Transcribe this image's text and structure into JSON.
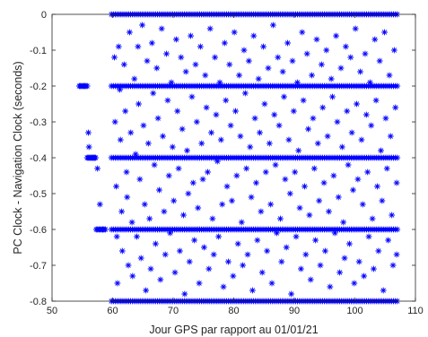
{
  "chart_data": {
    "type": "scatter",
    "title": "",
    "xlabel": "Jour GPS par rapport au 01/01/21",
    "ylabel": "PC Clock - Navigation Clock (seconds)",
    "xlim": [
      50,
      110
    ],
    "ylim": [
      -0.8,
      0
    ],
    "xticks": [
      50,
      60,
      70,
      80,
      90,
      100,
      110
    ],
    "yticks": [
      0,
      -0.1,
      -0.2,
      -0.3,
      -0.4,
      -0.5,
      -0.6,
      -0.7,
      -0.8
    ],
    "xtick_labels": [
      "50",
      "60",
      "70",
      "80",
      "90",
      "100",
      "110"
    ],
    "ytick_labels": [
      "0",
      "-0.1",
      "-0.2",
      "-0.3",
      "-0.4",
      "-0.5",
      "-0.6",
      "-0.7",
      "-0.8"
    ],
    "grid": false,
    "box": true,
    "marker": "asterisk",
    "marker_color": "#0000ff",
    "series": [
      {
        "dense_bands": [
          {
            "y": 0,
            "x_start": 59.8,
            "x_end": 107.0,
            "count": 150
          },
          {
            "y": -0.2,
            "x_start": 59.8,
            "x_end": 107.0,
            "count": 150
          },
          {
            "y": -0.4,
            "x_start": 59.8,
            "x_end": 107.0,
            "count": 150
          },
          {
            "y": -0.6,
            "x_start": 59.8,
            "x_end": 107.0,
            "count": 150
          },
          {
            "y": -0.8,
            "x_start": 59.8,
            "x_end": 107.0,
            "count": 150
          },
          {
            "y": -0.2,
            "x_start": 54.5,
            "x_end": 55.8,
            "count": 8
          },
          {
            "y": -0.4,
            "x_start": 55.8,
            "x_end": 57.2,
            "count": 10
          },
          {
            "y": -0.6,
            "x_start": 57.3,
            "x_end": 58.8,
            "count": 8
          }
        ],
        "points": [
          [
            56.0,
            -0.33
          ],
          [
            56.1,
            -0.37
          ],
          [
            57.5,
            -0.43
          ],
          [
            57.9,
            -0.53
          ],
          [
            58.4,
            -0.6
          ],
          [
            60.3,
            -0.12
          ],
          [
            60.4,
            -0.3
          ],
          [
            60.6,
            -0.48
          ],
          [
            60.7,
            -0.62
          ],
          [
            60.8,
            -0.75
          ],
          [
            61.0,
            -0.09
          ],
          [
            61.2,
            -0.21
          ],
          [
            61.3,
            -0.35
          ],
          [
            61.5,
            -0.55
          ],
          [
            61.6,
            -0.66
          ],
          [
            61.9,
            -0.14
          ],
          [
            62.1,
            -0.27
          ],
          [
            62.3,
            -0.44
          ],
          [
            62.4,
            -0.51
          ],
          [
            62.6,
            -0.7
          ],
          [
            62.8,
            -0.05
          ],
          [
            63.0,
            -0.33
          ],
          [
            63.2,
            -0.58
          ],
          [
            63.3,
            -0.73
          ],
          [
            63.6,
            -0.18
          ],
          [
            63.8,
            -0.39
          ],
          [
            64.0,
            -0.62
          ],
          [
            64.2,
            -0.09
          ],
          [
            64.3,
            -0.25
          ],
          [
            64.5,
            -0.46
          ],
          [
            64.7,
            -0.68
          ],
          [
            64.9,
            -0.03
          ],
          [
            65.1,
            -0.31
          ],
          [
            65.3,
            -0.53
          ],
          [
            65.5,
            -0.77
          ],
          [
            65.7,
            -0.13
          ],
          [
            65.9,
            -0.36
          ],
          [
            66.1,
            -0.57
          ],
          [
            66.3,
            -0.71
          ],
          [
            66.5,
            -0.08
          ],
          [
            66.7,
            -0.22
          ],
          [
            66.9,
            -0.42
          ],
          [
            67.1,
            -0.64
          ],
          [
            67.3,
            -0.15
          ],
          [
            67.5,
            -0.29
          ],
          [
            67.7,
            -0.49
          ],
          [
            67.9,
            -0.74
          ],
          [
            68.1,
            -0.04
          ],
          [
            68.3,
            -0.34
          ],
          [
            68.5,
            -0.55
          ],
          [
            68.7,
            -0.67
          ],
          [
            68.9,
            -0.11
          ],
          [
            69.1,
            -0.24
          ],
          [
            69.3,
            -0.45
          ],
          [
            69.5,
            -0.61
          ],
          [
            69.7,
            -0.19
          ],
          [
            69.9,
            -0.37
          ],
          [
            70.1,
            -0.52
          ],
          [
            70.3,
            -0.72
          ],
          [
            70.5,
            -0.07
          ],
          [
            70.7,
            -0.27
          ],
          [
            70.9,
            -0.43
          ],
          [
            71.1,
            -0.66
          ],
          [
            71.3,
            -0.12
          ],
          [
            71.5,
            -0.32
          ],
          [
            71.7,
            -0.56
          ],
          [
            71.9,
            -0.78
          ],
          [
            72.1,
            -0.16
          ],
          [
            72.3,
            -0.38
          ],
          [
            72.5,
            -0.5
          ],
          [
            72.7,
            -0.69
          ],
          [
            72.9,
            -0.06
          ],
          [
            73.1,
            -0.23
          ],
          [
            73.3,
            -0.47
          ],
          [
            73.5,
            -0.63
          ],
          [
            73.7,
            -0.14
          ],
          [
            73.9,
            -0.3
          ],
          [
            74.1,
            -0.54
          ],
          [
            74.3,
            -0.75
          ],
          [
            74.5,
            -0.09
          ],
          [
            74.7,
            -0.36
          ],
          [
            74.9,
            -0.46
          ],
          [
            75.1,
            -0.65
          ],
          [
            75.3,
            -0.17
          ],
          [
            75.5,
            -0.26
          ],
          [
            75.7,
            -0.44
          ],
          [
            75.9,
            -0.71
          ],
          [
            76.1,
            -0.04
          ],
          [
            76.3,
            -0.33
          ],
          [
            76.5,
            -0.57
          ],
          [
            76.7,
            -0.67
          ],
          [
            76.9,
            -0.12
          ],
          [
            77.1,
            -0.28
          ],
          [
            77.3,
            -0.41
          ],
          [
            77.5,
            -0.62
          ],
          [
            77.7,
            -0.19
          ],
          [
            77.9,
            -0.35
          ],
          [
            78.1,
            -0.53
          ],
          [
            78.3,
            -0.76
          ],
          [
            78.5,
            -0.08
          ],
          [
            78.7,
            -0.24
          ],
          [
            78.9,
            -0.48
          ],
          [
            79.1,
            -0.69
          ],
          [
            79.3,
            -0.14
          ],
          [
            79.5,
            -0.31
          ],
          [
            79.7,
            -0.52
          ],
          [
            79.9,
            -0.73
          ],
          [
            80.1,
            -0.05
          ],
          [
            80.3,
            -0.27
          ],
          [
            80.5,
            -0.45
          ],
          [
            80.7,
            -0.64
          ],
          [
            80.9,
            -0.17
          ],
          [
            81.1,
            -0.34
          ],
          [
            81.3,
            -0.58
          ],
          [
            81.5,
            -0.7
          ],
          [
            81.7,
            -0.1
          ],
          [
            81.9,
            -0.22
          ],
          [
            82.1,
            -0.43
          ],
          [
            82.3,
            -0.67
          ],
          [
            82.5,
            -0.13
          ],
          [
            82.7,
            -0.37
          ],
          [
            82.9,
            -0.51
          ],
          [
            83.1,
            -0.77
          ],
          [
            83.3,
            -0.06
          ],
          [
            83.5,
            -0.29
          ],
          [
            83.7,
            -0.47
          ],
          [
            83.9,
            -0.63
          ],
          [
            84.1,
            -0.18
          ],
          [
            84.3,
            -0.33
          ],
          [
            84.5,
            -0.55
          ],
          [
            84.7,
            -0.72
          ],
          [
            84.9,
            -0.09
          ],
          [
            85.1,
            -0.25
          ],
          [
            85.3,
            -0.44
          ],
          [
            85.5,
            -0.66
          ],
          [
            85.7,
            -0.15
          ],
          [
            85.9,
            -0.36
          ],
          [
            86.1,
            -0.53
          ],
          [
            86.3,
            -0.75
          ],
          [
            86.5,
            -0.03
          ],
          [
            86.7,
            -0.28
          ],
          [
            86.9,
            -0.42
          ],
          [
            87.1,
            -0.61
          ],
          [
            87.3,
            -0.12
          ],
          [
            87.5,
            -0.31
          ],
          [
            87.7,
            -0.57
          ],
          [
            87.9,
            -0.69
          ],
          [
            88.1,
            -0.16
          ],
          [
            88.3,
            -0.23
          ],
          [
            88.5,
            -0.46
          ],
          [
            88.7,
            -0.65
          ],
          [
            88.9,
            -0.08
          ],
          [
            89.1,
            -0.35
          ],
          [
            89.3,
            -0.5
          ],
          [
            89.5,
            -0.78
          ],
          [
            89.7,
            -0.13
          ],
          [
            89.9,
            -0.27
          ],
          [
            90.1,
            -0.44
          ],
          [
            90.3,
            -0.62
          ],
          [
            90.5,
            -0.19
          ],
          [
            90.7,
            -0.38
          ],
          [
            90.9,
            -0.54
          ],
          [
            91.1,
            -0.71
          ],
          [
            91.3,
            -0.05
          ],
          [
            91.5,
            -0.24
          ],
          [
            91.7,
            -0.48
          ],
          [
            91.9,
            -0.67
          ],
          [
            92.1,
            -0.11
          ],
          [
            92.3,
            -0.32
          ],
          [
            92.5,
            -0.56
          ],
          [
            92.7,
            -0.74
          ],
          [
            92.9,
            -0.17
          ],
          [
            93.1,
            -0.29
          ],
          [
            93.3,
            -0.43
          ],
          [
            93.5,
            -0.63
          ],
          [
            93.7,
            -0.07
          ],
          [
            93.9,
            -0.36
          ],
          [
            94.1,
            -0.52
          ],
          [
            94.3,
            -0.7
          ],
          [
            94.5,
            -0.14
          ],
          [
            94.7,
            -0.26
          ],
          [
            94.9,
            -0.47
          ],
          [
            95.1,
            -0.66
          ],
          [
            95.3,
            -0.1
          ],
          [
            95.5,
            -0.34
          ],
          [
            95.7,
            -0.55
          ],
          [
            95.9,
            -0.76
          ],
          [
            96.1,
            -0.18
          ],
          [
            96.3,
            -0.23
          ],
          [
            96.5,
            -0.45
          ],
          [
            96.7,
            -0.61
          ],
          [
            96.9,
            -0.06
          ],
          [
            97.1,
            -0.3
          ],
          [
            97.3,
            -0.51
          ],
          [
            97.5,
            -0.72
          ],
          [
            97.7,
            -0.15
          ],
          [
            97.9,
            -0.37
          ],
          [
            98.1,
            -0.58
          ],
          [
            98.3,
            -0.68
          ],
          [
            98.5,
            -0.09
          ],
          [
            98.7,
            -0.27
          ],
          [
            98.9,
            -0.42
          ],
          [
            99.1,
            -0.64
          ],
          [
            99.3,
            -0.12
          ],
          [
            99.5,
            -0.33
          ],
          [
            99.7,
            -0.49
          ],
          [
            99.9,
            -0.75
          ],
          [
            100.1,
            -0.04
          ],
          [
            100.3,
            -0.25
          ],
          [
            100.5,
            -0.46
          ],
          [
            100.7,
            -0.69
          ],
          [
            100.9,
            -0.16
          ],
          [
            101.1,
            -0.35
          ],
          [
            101.3,
            -0.53
          ],
          [
            101.5,
            -0.73
          ],
          [
            101.7,
            -0.11
          ],
          [
            101.9,
            -0.28
          ],
          [
            102.1,
            -0.44
          ],
          [
            102.3,
            -0.62
          ],
          [
            102.5,
            -0.19
          ],
          [
            102.7,
            -0.31
          ],
          [
            102.9,
            -0.57
          ],
          [
            103.1,
            -0.71
          ],
          [
            103.3,
            -0.07
          ],
          [
            103.5,
            -0.24
          ],
          [
            103.7,
            -0.48
          ],
          [
            103.9,
            -0.66
          ],
          [
            104.1,
            -0.13
          ],
          [
            104.3,
            -0.38
          ],
          [
            104.5,
            -0.52
          ],
          [
            104.7,
            -0.77
          ],
          [
            104.9,
            -0.05
          ],
          [
            105.1,
            -0.29
          ],
          [
            105.3,
            -0.43
          ],
          [
            105.5,
            -0.63
          ],
          [
            105.7,
            -0.17
          ],
          [
            105.9,
            -0.34
          ],
          [
            106.1,
            -0.56
          ],
          [
            106.3,
            -0.7
          ],
          [
            106.5,
            -0.1
          ],
          [
            106.7,
            -0.26
          ],
          [
            106.9,
            -0.47
          ],
          [
            106.9,
            -0.67
          ]
        ]
      }
    ]
  }
}
